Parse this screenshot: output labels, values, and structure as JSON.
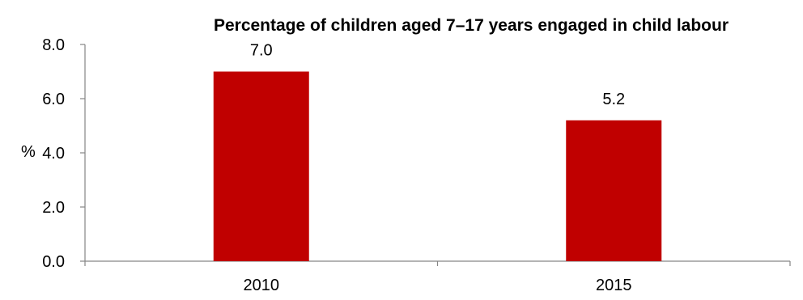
{
  "chart_data": {
    "type": "bar",
    "title": "Percentage of children aged 7–17 years engaged in child labour",
    "xlabel": "",
    "ylabel": "%",
    "categories": [
      "2010",
      "2015"
    ],
    "values": [
      7.0,
      5.2
    ],
    "value_labels": [
      "7.0",
      "5.2"
    ],
    "ylim": [
      0,
      8
    ],
    "y_ticks": [
      0,
      2,
      4,
      6,
      8
    ],
    "y_tick_labels": [
      "0.0",
      "2.0",
      "4.0",
      "6.0",
      "8.0"
    ],
    "grid": false,
    "legend": "none",
    "bar_color": "#C00000"
  }
}
